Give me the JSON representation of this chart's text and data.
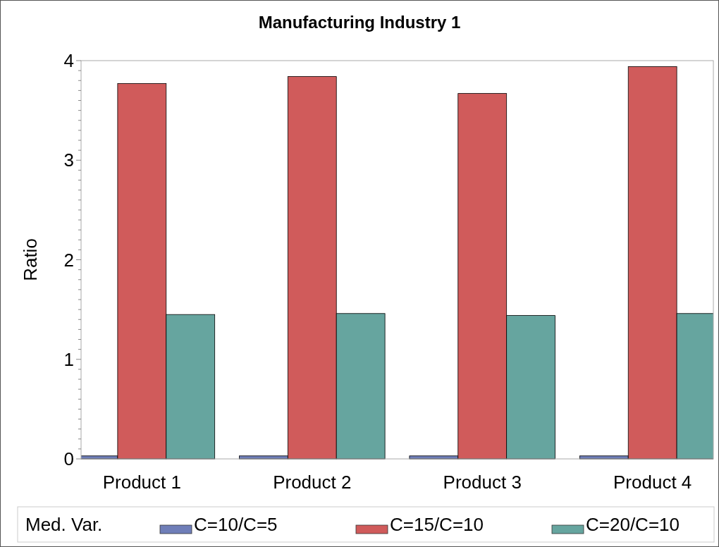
{
  "chart_data": {
    "type": "bar",
    "title": "Manufacturing Industry 1",
    "ylabel": "Ratio",
    "legend_title": "Med. Var.",
    "categories": [
      "Product 1",
      "Product 2",
      "Product 3",
      "Product 4"
    ],
    "series": [
      {
        "name": "C=10/C=5",
        "color": "#6f7eb8",
        "values": [
          0.03,
          0.03,
          0.03,
          0.03
        ]
      },
      {
        "name": "C=15/C=10",
        "color": "#d05b5b",
        "values": [
          3.77,
          3.84,
          3.67,
          3.94
        ]
      },
      {
        "name": "C=20/C=10",
        "color": "#66a59f",
        "values": [
          1.45,
          1.46,
          1.44,
          1.46
        ]
      }
    ],
    "ylim": [
      0,
      4
    ],
    "yticks": [
      0,
      {
        "value": 0.1,
        "label": null
      },
      {
        "value": 0.2,
        "label": null
      },
      {
        "value": 0.3,
        "label": null
      },
      {
        "value": 0.4,
        "label": null
      },
      {
        "value": 0.5,
        "label": null
      },
      {
        "value": 0.6,
        "label": null
      },
      {
        "value": 0.7,
        "label": null
      },
      {
        "value": 0.8,
        "label": null
      },
      {
        "value": 0.9,
        "label": null
      },
      1,
      {
        "value": 1.1,
        "label": null
      },
      {
        "value": 1.2,
        "label": null
      },
      {
        "value": 1.3,
        "label": null
      },
      {
        "value": 1.4,
        "label": null
      },
      {
        "value": 1.5,
        "label": null
      },
      {
        "value": 1.6,
        "label": null
      },
      {
        "value": 1.7,
        "label": null
      },
      {
        "value": 1.8,
        "label": null
      },
      {
        "value": 1.9,
        "label": null
      },
      2,
      {
        "value": 2.1,
        "label": null
      },
      {
        "value": 2.2,
        "label": null
      },
      {
        "value": 2.3,
        "label": null
      },
      {
        "value": 2.4,
        "label": null
      },
      {
        "value": 2.5,
        "label": null
      },
      {
        "value": 2.6,
        "label": null
      },
      {
        "value": 2.7,
        "label": null
      },
      {
        "value": 2.8,
        "label": null
      },
      {
        "value": 2.9,
        "label": null
      },
      3,
      {
        "value": 3.1,
        "label": null
      },
      {
        "value": 3.2,
        "label": null
      },
      {
        "value": 3.3,
        "label": null
      },
      {
        "value": 3.4,
        "label": null
      },
      {
        "value": 3.5,
        "label": null
      },
      {
        "value": 3.6,
        "label": null
      },
      {
        "value": 3.7,
        "label": null
      },
      {
        "value": 3.8,
        "label": null
      },
      {
        "value": 3.9,
        "label": null
      },
      4
    ],
    "grid": false,
    "legend": "bottom"
  }
}
